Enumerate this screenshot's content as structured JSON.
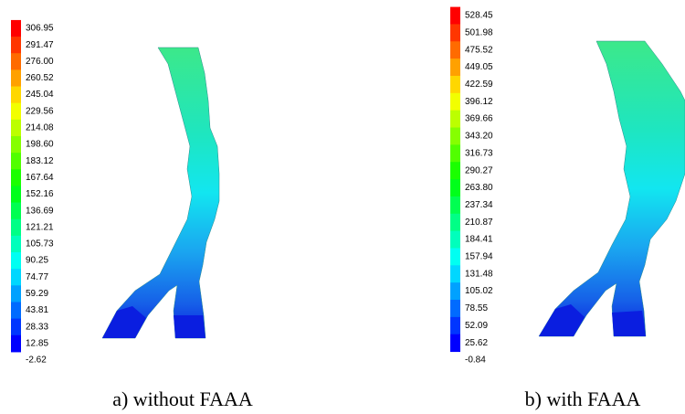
{
  "panels": [
    {
      "caption": "a) without FAAA",
      "legend": [
        "306.95",
        "291.47",
        "276.00",
        "260.52",
        "245.04",
        "229.56",
        "214.08",
        "198.60",
        "183.12",
        "167.64",
        "152.16",
        "136.69",
        "121.21",
        "105.73",
        "90.25",
        "74.77",
        "59.29",
        "43.81",
        "28.33",
        "12.85",
        "-2.62"
      ]
    },
    {
      "caption": "b) with FAAA",
      "legend": [
        "528.45",
        "501.98",
        "475.52",
        "449.05",
        "422.59",
        "396.12",
        "369.66",
        "343.20",
        "316.73",
        "290.27",
        "263.80",
        "237.34",
        "210.87",
        "184.41",
        "157.94",
        "131.48",
        "105.02",
        "78.55",
        "52.09",
        "25.62",
        "-0.84"
      ]
    }
  ]
}
